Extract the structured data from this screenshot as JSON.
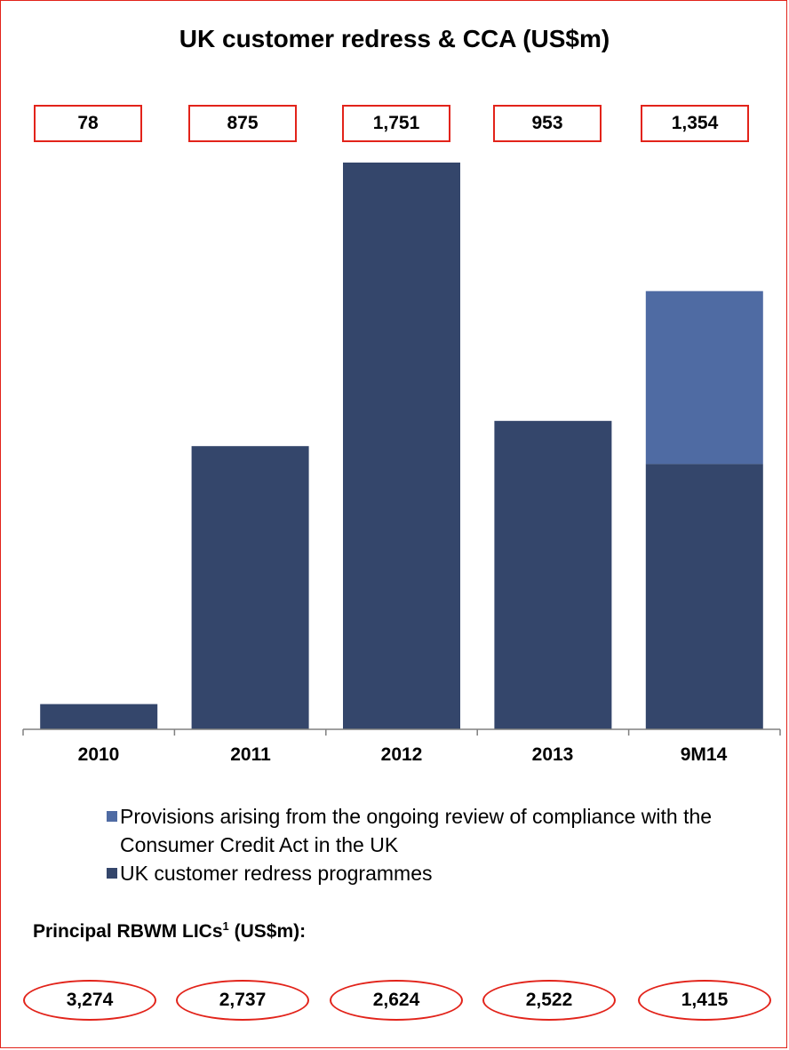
{
  "chart_data": {
    "type": "bar",
    "stacked": true,
    "title": "UK customer redress & CCA (US$m)",
    "categories": [
      "2010",
      "2011",
      "2012",
      "2013",
      "9M14"
    ],
    "series": [
      {
        "name": "UK customer redress programmes",
        "color": "#34466b",
        "values": [
          78,
          875,
          1751,
          953,
          820
        ]
      },
      {
        "name": "Provisions arising from the ongoing review of compliance with the Consumer Credit Act in the UK",
        "color": "#4f6ba3",
        "values": [
          0,
          0,
          0,
          0,
          534
        ]
      }
    ],
    "totals": [
      "78",
      "875",
      "1,751",
      "953",
      "1,354"
    ],
    "ylim": [
      0,
      1751
    ],
    "legend_position": "bottom",
    "grid": false
  },
  "lics": {
    "title": "Principal RBWM LICs",
    "superscript": "1",
    "unit": " (US$m):",
    "values": [
      "3,274",
      "2,737",
      "2,624",
      "2,522",
      "1,415"
    ]
  }
}
